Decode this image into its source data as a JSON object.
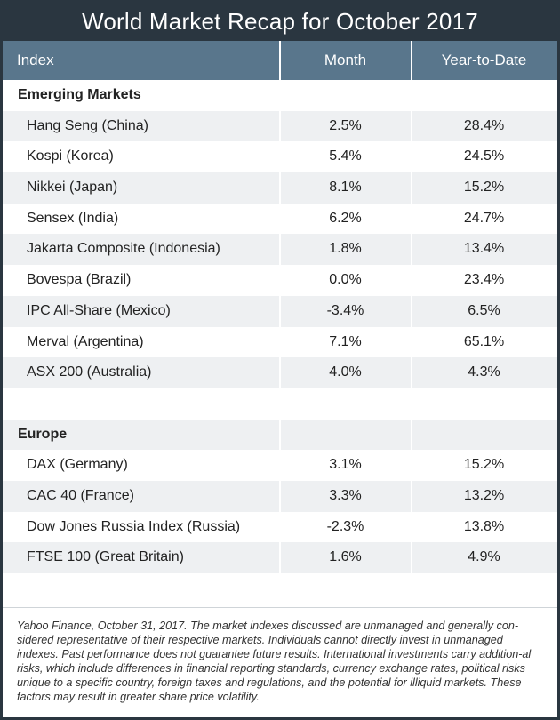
{
  "title": "World Market Recap for October 2017",
  "columns": {
    "index": "Index",
    "month": "Month",
    "ytd": "Year-to-Date"
  },
  "sections": [
    {
      "name": "Emerging Markets",
      "rows": [
        {
          "index": "Hang Seng (China)",
          "month": "2.5%",
          "ytd": "28.4%"
        },
        {
          "index": "Kospi (Korea)",
          "month": "5.4%",
          "ytd": "24.5%"
        },
        {
          "index": "Nikkei (Japan)",
          "month": "8.1%",
          "ytd": "15.2%"
        },
        {
          "index": "Sensex (India)",
          "month": "6.2%",
          "ytd": "24.7%"
        },
        {
          "index": "Jakarta Composite (Indonesia)",
          "month": "1.8%",
          "ytd": "13.4%"
        },
        {
          "index": "Bovespa (Brazil)",
          "month": "0.0%",
          "ytd": "23.4%"
        },
        {
          "index": "IPC All-Share (Mexico)",
          "month": "-3.4%",
          "ytd": "6.5%"
        },
        {
          "index": "Merval (Argentina)",
          "month": "7.1%",
          "ytd": "65.1%"
        },
        {
          "index": "ASX 200 (Australia)",
          "month": "4.0%",
          "ytd": "4.3%"
        }
      ]
    },
    {
      "name": "Europe",
      "rows": [
        {
          "index": "DAX (Germany)",
          "month": "3.1%",
          "ytd": "15.2%"
        },
        {
          "index": "CAC 40 (France)",
          "month": "3.3%",
          "ytd": "13.2%"
        },
        {
          "index": "Dow Jones Russia Index (Russia)",
          "month": "-2.3%",
          "ytd": "13.8%"
        },
        {
          "index": "FTSE 100 (Great Britain)",
          "month": "1.6%",
          "ytd": "4.9%"
        }
      ]
    }
  ],
  "footnote": "Yahoo Finance, October 31, 2017. The market indexes discussed are unmanaged and generally con-sidered representative of their respective markets. Individuals cannot directly invest in unmanaged indexes. Past performance does not guarantee future results. International investments carry addition-al risks, which include differences in financial reporting standards, currency exchange rates, political risks unique to a specific country, foreign taxes and regulations, and the potential for illiquid markets. These factors may result in greater share price volatility.",
  "colors": {
    "frame": "#2a3640",
    "header": "#59768c",
    "stripe": "#eef0f2"
  }
}
